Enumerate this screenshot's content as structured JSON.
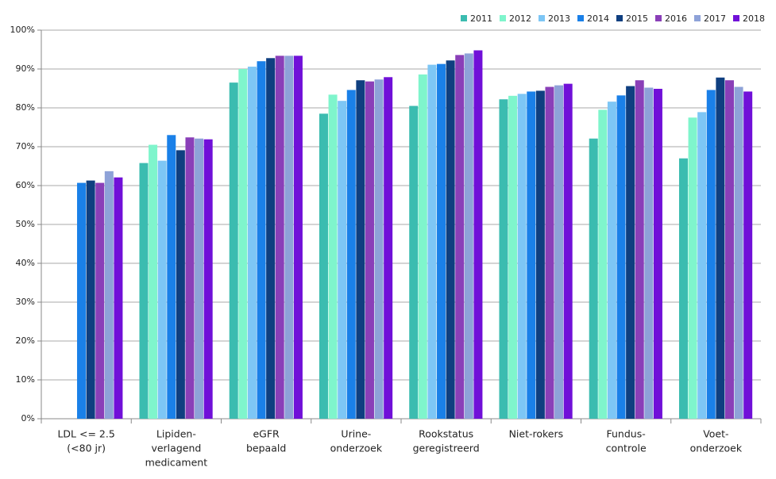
{
  "chart_data": {
    "type": "bar",
    "categories": [
      [
        "LDL <= 2.5",
        "(<80 jr)"
      ],
      [
        "Lipiden-",
        "verlagend",
        "medicament"
      ],
      [
        "eGFR",
        "bepaald"
      ],
      [
        "Urine-",
        "onderzoek"
      ],
      [
        "Rookstatus",
        "geregistreerd"
      ],
      [
        "Niet-rokers"
      ],
      [
        "Fundus-",
        "controle"
      ],
      [
        "Voet-",
        "onderzoek"
      ]
    ],
    "series": [
      {
        "name": "2011",
        "color": "#3bbcb0",
        "values": [
          null,
          65.8,
          86.5,
          78.5,
          80.5,
          82.2,
          72.1,
          67.0
        ]
      },
      {
        "name": "2012",
        "color": "#7ff5cc",
        "values": [
          null,
          70.5,
          90.0,
          83.4,
          88.6,
          83.1,
          79.5,
          77.5
        ]
      },
      {
        "name": "2013",
        "color": "#7dc6f5",
        "values": [
          null,
          66.4,
          90.6,
          81.8,
          91.1,
          83.6,
          81.6,
          78.9
        ]
      },
      {
        "name": "2014",
        "color": "#1a80e8",
        "values": [
          60.7,
          73.0,
          92.0,
          84.6,
          91.3,
          84.2,
          83.2,
          84.6
        ]
      },
      {
        "name": "2015",
        "color": "#0f3f80",
        "values": [
          61.3,
          69.1,
          92.8,
          87.1,
          92.2,
          84.4,
          85.6,
          87.8
        ]
      },
      {
        "name": "2016",
        "color": "#8a3fb8",
        "values": [
          60.7,
          72.4,
          93.4,
          86.8,
          93.6,
          85.4,
          87.1,
          87.1
        ]
      },
      {
        "name": "2017",
        "color": "#8ea2d8",
        "values": [
          63.7,
          72.1,
          93.4,
          87.3,
          94.0,
          85.8,
          85.2,
          85.4
        ]
      },
      {
        "name": "2018",
        "color": "#7010d8",
        "values": [
          62.1,
          71.9,
          93.4,
          87.9,
          94.8,
          86.2,
          84.9,
          84.2
        ]
      }
    ],
    "ylim": [
      0,
      100
    ],
    "yticks": [
      {
        "value": 0,
        "label": "0%"
      },
      {
        "value": 10,
        "label": "10%"
      },
      {
        "value": 20,
        "label": "20%"
      },
      {
        "value": 30,
        "label": "30%"
      },
      {
        "value": 40,
        "label": "40%"
      },
      {
        "value": 50,
        "label": "50%"
      },
      {
        "value": 60,
        "label": "60%"
      },
      {
        "value": 70,
        "label": "70%"
      },
      {
        "value": 80,
        "label": "80%"
      },
      {
        "value": 90,
        "label": "90%"
      },
      {
        "value": 100,
        "label": "100%"
      }
    ],
    "grid": true,
    "legend": "top-right"
  }
}
